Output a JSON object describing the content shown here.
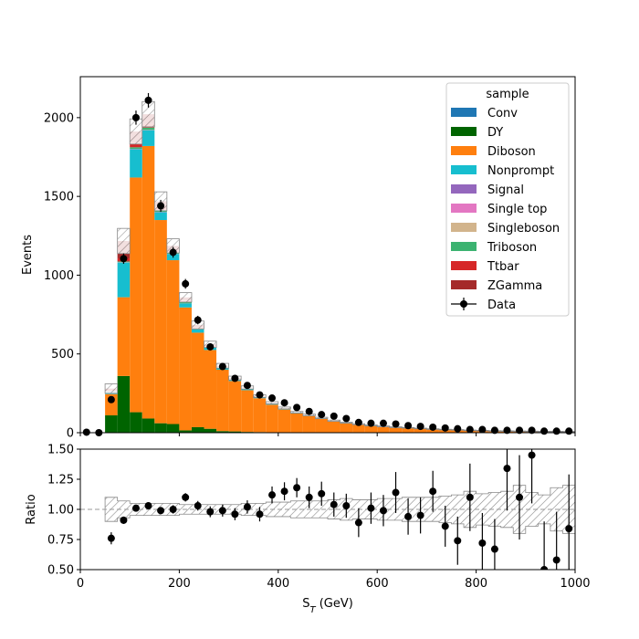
{
  "chart_data": [
    {
      "type": "bar",
      "stacked": true,
      "ylabel": "Events",
      "xlim": [
        0,
        1000
      ],
      "ylim": [
        0,
        2260
      ],
      "yticks": [
        "0",
        "500",
        "1000",
        "1500",
        "2000"
      ],
      "bin_edges": [
        0,
        25,
        50,
        75,
        100,
        125,
        150,
        175,
        200,
        225,
        250,
        275,
        300,
        325,
        350,
        375,
        400,
        425,
        450,
        475,
        500,
        525,
        550,
        575,
        600,
        625,
        650,
        675,
        700,
        725,
        750,
        775,
        800,
        825,
        850,
        875,
        900,
        925,
        950,
        975,
        1000
      ],
      "legend": {
        "title": "sample",
        "placement": "top-right"
      },
      "series": [
        {
          "name": "Conv",
          "color": "#1f77b4",
          "values": [
            0,
            0,
            0,
            0,
            0,
            0,
            0,
            0,
            0,
            0,
            0,
            0,
            0,
            0,
            0,
            0,
            0,
            0,
            0,
            0,
            0,
            0,
            0,
            0,
            0,
            0,
            0,
            0,
            0,
            0,
            0,
            0,
            0,
            0,
            0,
            0,
            0,
            0,
            0,
            0
          ]
        },
        {
          "name": "DY",
          "color": "#006400",
          "values": [
            0,
            0,
            110,
            360,
            130,
            90,
            60,
            55,
            15,
            35,
            25,
            10,
            8,
            5,
            4,
            3,
            2,
            2,
            1,
            1,
            1,
            0,
            0,
            0,
            0,
            0,
            0,
            0,
            0,
            0,
            0,
            0,
            0,
            0,
            0,
            0,
            0,
            0,
            0,
            0
          ]
        },
        {
          "name": "Diboson",
          "color": "#ff7f0e",
          "values": [
            0,
            0,
            135,
            500,
            1490,
            1730,
            1290,
            1040,
            780,
            600,
            500,
            390,
            320,
            265,
            215,
            175,
            145,
            120,
            105,
            87,
            70,
            59,
            49,
            42,
            36,
            31,
            27,
            23,
            20,
            17,
            15,
            13,
            11,
            10,
            9,
            8,
            7,
            6,
            6,
            5
          ]
        },
        {
          "name": "Nonprompt",
          "color": "#17becf",
          "values": [
            0,
            0,
            15,
            220,
            180,
            100,
            50,
            40,
            25,
            20,
            15,
            10,
            8,
            7,
            6,
            5,
            4,
            4,
            3,
            3,
            2,
            2,
            2,
            2,
            1,
            1,
            1,
            1,
            1,
            1,
            1,
            1,
            1,
            0,
            0,
            0,
            0,
            0,
            0,
            0
          ]
        },
        {
          "name": "Signal",
          "color": "#9467bd",
          "values": [
            0,
            0,
            0,
            0,
            0,
            0,
            0,
            0,
            0,
            0,
            0,
            0,
            0,
            0,
            0,
            0,
            0,
            0,
            0,
            0,
            0,
            0,
            0,
            0,
            0,
            0,
            0,
            0,
            0,
            0,
            0,
            0,
            0,
            0,
            0,
            0,
            0,
            0,
            0,
            0
          ]
        },
        {
          "name": "Single top",
          "color": "#e377c2",
          "values": [
            0,
            0,
            1,
            2,
            2,
            2,
            2,
            1,
            1,
            1,
            1,
            1,
            0,
            0,
            0,
            0,
            0,
            0,
            0,
            0,
            0,
            0,
            0,
            0,
            0,
            0,
            0,
            0,
            0,
            0,
            0,
            0,
            0,
            0,
            0,
            0,
            0,
            0,
            0,
            0
          ]
        },
        {
          "name": "Singleboson",
          "color": "#d2b48c",
          "values": [
            0,
            0,
            0,
            0,
            0,
            0,
            0,
            0,
            0,
            0,
            0,
            0,
            0,
            0,
            0,
            0,
            0,
            0,
            0,
            0,
            0,
            0,
            0,
            0,
            0,
            0,
            0,
            0,
            0,
            0,
            0,
            0,
            0,
            0,
            0,
            0,
            0,
            0,
            0,
            0
          ]
        },
        {
          "name": "Triboson",
          "color": "#3cb371",
          "values": [
            0,
            0,
            2,
            5,
            10,
            15,
            12,
            10,
            8,
            6,
            5,
            4,
            3,
            3,
            2,
            2,
            2,
            1,
            1,
            1,
            1,
            1,
            1,
            1,
            1,
            1,
            1,
            1,
            1,
            1,
            1,
            0,
            0,
            0,
            0,
            0,
            0,
            0,
            0,
            0
          ]
        },
        {
          "name": "Ttbar",
          "color": "#d62728",
          "values": [
            0,
            0,
            7,
            20,
            30,
            25,
            20,
            15,
            10,
            7,
            5,
            4,
            3,
            3,
            2,
            2,
            2,
            1,
            1,
            1,
            1,
            1,
            1,
            1,
            1,
            1,
            1,
            1,
            0,
            0,
            0,
            0,
            0,
            0,
            0,
            0,
            0,
            0,
            0,
            0
          ]
        },
        {
          "name": "ZGamma",
          "color": "#a52a2a",
          "values": [
            0,
            0,
            10,
            110,
            70,
            60,
            35,
            25,
            20,
            15,
            10,
            6,
            5,
            4,
            3,
            3,
            2,
            2,
            2,
            1,
            1,
            1,
            1,
            1,
            1,
            1,
            1,
            1,
            1,
            1,
            1,
            1,
            1,
            1,
            1,
            1,
            1,
            1,
            1,
            1
          ]
        }
      ],
      "mc_uncertainty": [
        0,
        0,
        30,
        80,
        80,
        80,
        60,
        45,
        30,
        25,
        20,
        15,
        12,
        10,
        8,
        7,
        6,
        5,
        5,
        4,
        4,
        3,
        3,
        3,
        3,
        3,
        2,
        2,
        2,
        2,
        2,
        2,
        2,
        2,
        2,
        2,
        2,
        2,
        2,
        2
      ],
      "data": {
        "name": "Data",
        "color": "#000000",
        "x": [
          12.5,
          37.5,
          62.5,
          87.5,
          112.5,
          137.5,
          162.5,
          187.5,
          212.5,
          237.5,
          262.5,
          287.5,
          312.5,
          337.5,
          362.5,
          387.5,
          412.5,
          437.5,
          462.5,
          487.5,
          512.5,
          537.5,
          562.5,
          587.5,
          612.5,
          637.5,
          662.5,
          687.5,
          712.5,
          737.5,
          762.5,
          787.5,
          812.5,
          837.5,
          862.5,
          887.5,
          912.5,
          937.5,
          962.5,
          987.5
        ],
        "y": [
          3,
          0,
          210,
          1105,
          2000,
          2110,
          1440,
          1145,
          945,
          715,
          545,
          420,
          345,
          300,
          240,
          220,
          190,
          160,
          135,
          115,
          105,
          90,
          65,
          60,
          60,
          55,
          45,
          40,
          35,
          30,
          25,
          20,
          20,
          15,
          15,
          15,
          15,
          10,
          10,
          10
        ],
        "yerr": [
          2,
          0,
          15,
          33,
          45,
          46,
          38,
          34,
          31,
          27,
          23,
          20,
          19,
          17,
          15,
          15,
          14,
          13,
          12,
          11,
          10,
          9,
          8,
          8,
          8,
          7,
          7,
          6,
          6,
          5,
          5,
          4,
          4,
          4,
          4,
          4,
          4,
          3,
          3,
          3
        ]
      }
    },
    {
      "type": "scatter",
      "xlabel": "S_T (GeV)",
      "ylabel": "Ratio",
      "xlim": [
        0,
        1000
      ],
      "ylim": [
        0.5,
        1.5
      ],
      "xticks": [
        "0",
        "200",
        "400",
        "600",
        "800",
        "1000"
      ],
      "yticks": [
        "0.50",
        "0.75",
        "1.00",
        "1.25",
        "1.50"
      ],
      "reference_line": 1.0,
      "x": [
        62.5,
        87.5,
        112.5,
        137.5,
        162.5,
        187.5,
        212.5,
        237.5,
        262.5,
        287.5,
        312.5,
        337.5,
        362.5,
        387.5,
        412.5,
        437.5,
        462.5,
        487.5,
        512.5,
        537.5,
        562.5,
        587.5,
        612.5,
        637.5,
        662.5,
        687.5,
        712.5,
        737.5,
        762.5,
        787.5,
        812.5,
        837.5,
        862.5,
        887.5,
        912.5,
        937.5,
        962.5,
        987.5
      ],
      "y": [
        0.76,
        0.91,
        1.01,
        1.03,
        0.99,
        1.0,
        1.1,
        1.03,
        0.98,
        0.99,
        0.96,
        1.02,
        0.96,
        1.12,
        1.15,
        1.18,
        1.1,
        1.13,
        1.04,
        1.03,
        0.89,
        1.01,
        0.99,
        1.14,
        0.94,
        0.95,
        1.15,
        0.86,
        0.74,
        1.1,
        0.72,
        0.67,
        1.34,
        1.1,
        1.45,
        0.5,
        0.58,
        0.84
      ],
      "yerr": [
        0.05,
        0.03,
        0.025,
        0.025,
        0.03,
        0.035,
        0.035,
        0.04,
        0.045,
        0.05,
        0.05,
        0.055,
        0.06,
        0.07,
        0.075,
        0.08,
        0.09,
        0.1,
        0.1,
        0.1,
        0.12,
        0.13,
        0.13,
        0.17,
        0.15,
        0.15,
        0.17,
        0.17,
        0.2,
        0.28,
        0.25,
        0.25,
        0.35,
        0.35,
        0.4,
        0.4,
        0.4,
        0.45
      ],
      "band_halfwidth": [
        0.1,
        0.07,
        0.05,
        0.05,
        0.05,
        0.05,
        0.04,
        0.04,
        0.04,
        0.04,
        0.04,
        0.05,
        0.05,
        0.06,
        0.06,
        0.07,
        0.07,
        0.07,
        0.08,
        0.09,
        0.08,
        0.08,
        0.09,
        0.09,
        0.1,
        0.1,
        0.1,
        0.11,
        0.12,
        0.15,
        0.13,
        0.14,
        0.15,
        0.2,
        0.14,
        0.12,
        0.18,
        0.2
      ]
    }
  ]
}
